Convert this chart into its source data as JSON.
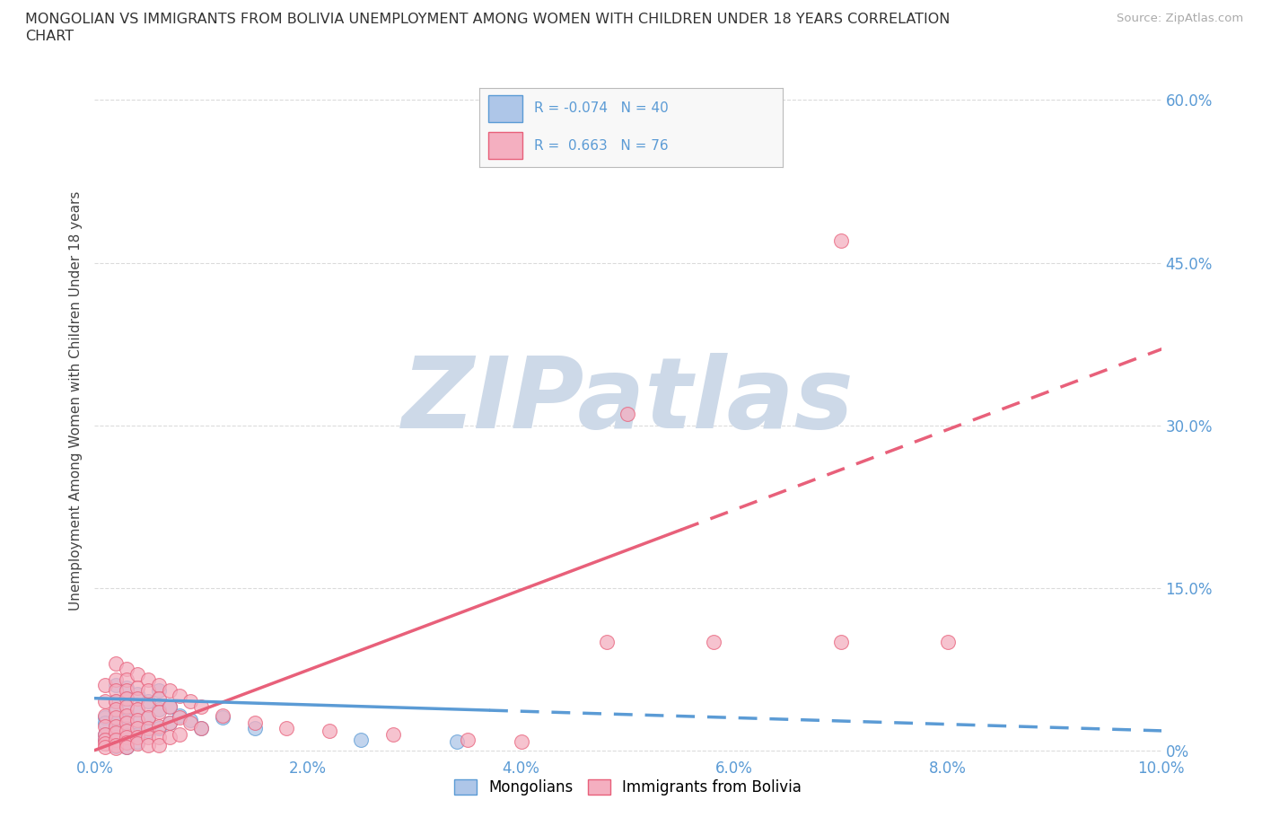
{
  "title_line1": "MONGOLIAN VS IMMIGRANTS FROM BOLIVIA UNEMPLOYMENT AMONG WOMEN WITH CHILDREN UNDER 18 YEARS CORRELATION",
  "title_line2": "CHART",
  "source": "Source: ZipAtlas.com",
  "ylabel": "Unemployment Among Women with Children Under 18 years",
  "mongolian_color": "#aec6e8",
  "bolivia_color": "#f4afc0",
  "mongolian_line_color": "#5b9bd5",
  "bolivia_line_color": "#e8607a",
  "xlim": [
    0.0,
    0.1
  ],
  "ylim": [
    -0.005,
    0.65
  ],
  "ytick_vals": [
    0.0,
    0.15,
    0.3,
    0.45,
    0.6
  ],
  "ytick_labels": [
    "0%",
    "15.0%",
    "30.0%",
    "45.0%",
    "60.0%"
  ],
  "xtick_vals": [
    0.0,
    0.02,
    0.04,
    0.06,
    0.08,
    0.1
  ],
  "xtick_labels": [
    "0.0%",
    "2.0%",
    "4.0%",
    "6.0%",
    "8.0%",
    "10.0%"
  ],
  "tick_color": "#5b9bd5",
  "grid_color": "#cccccc",
  "watermark": "ZIPatlas",
  "watermark_color": "#cdd9e8",
  "background_color": "#ffffff",
  "legend_R_color": "#5b9bd5",
  "bolivia_line_solid_end": 0.055,
  "mongolian_line_solid_end": 0.037,
  "bolivia_line_intercept": 0.0,
  "bolivia_line_slope": 3.7,
  "mongolian_line_intercept": 0.048,
  "mongolian_line_slope": -0.3,
  "scatter_size": 130
}
